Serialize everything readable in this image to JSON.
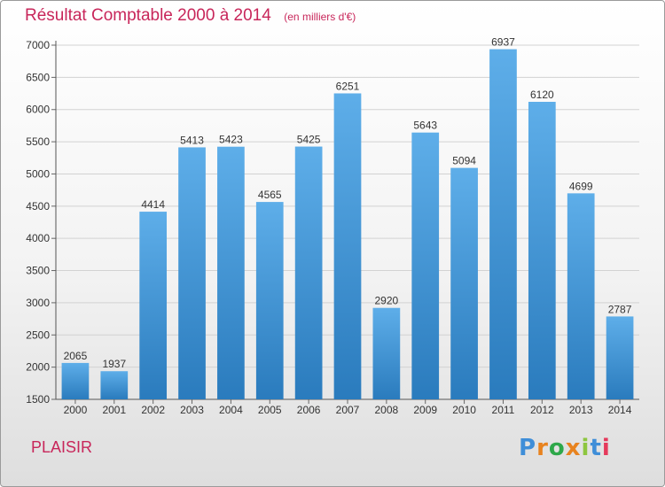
{
  "chart_data": {
    "type": "bar",
    "title": "Résultat Comptable 2000 à 2014",
    "unit": "(en milliers d'€)",
    "categories": [
      "2000",
      "2001",
      "2002",
      "2003",
      "2004",
      "2005",
      "2006",
      "2007",
      "2008",
      "2009",
      "2010",
      "2011",
      "2012",
      "2013",
      "2014"
    ],
    "values": [
      2065,
      1937,
      4414,
      5413,
      5423,
      4565,
      5425,
      6251,
      2920,
      5643,
      5094,
      6937,
      6120,
      4699,
      2787
    ],
    "yticks": [
      1500,
      2000,
      2500,
      3000,
      3500,
      4000,
      4500,
      5000,
      5500,
      6000,
      6500,
      7000
    ],
    "ylim": [
      1500,
      7000
    ],
    "grid": true,
    "xlabel": "",
    "ylabel": ""
  },
  "commune": "PLAISIR",
  "logo": {
    "text": "Proxiti",
    "colors": [
      "#3f8ed8",
      "#e8831f",
      "#2ea84a",
      "#e8831f",
      "#8dc63f",
      "#3f8ed8",
      "#e53a5c"
    ]
  },
  "colors": {
    "bar_top": "#5eaee9",
    "bar_bottom": "#2a7bbd",
    "title": "#c8265a",
    "grid": "#d2d2d2"
  }
}
